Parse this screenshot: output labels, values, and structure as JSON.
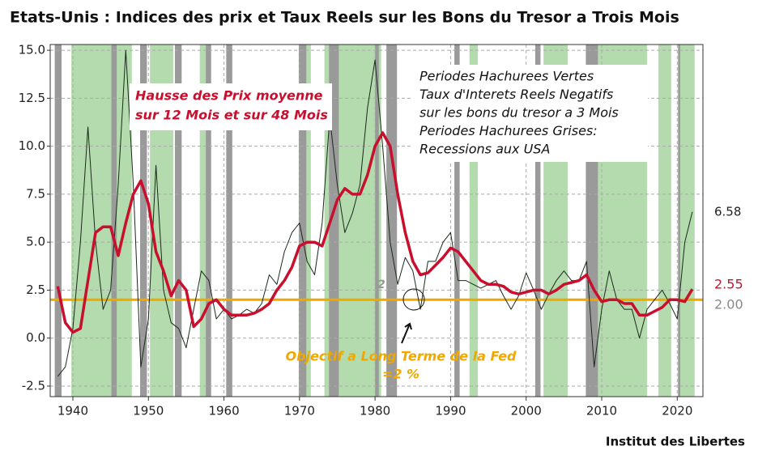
{
  "chart_data": {
    "type": "line",
    "title": "Etats-Unis : Indices des prix et Taux Reels sur les Bons du Tresor a Trois Mois",
    "source": "Institut des Libertes",
    "x": [
      1938,
      1939,
      1940,
      1941,
      1942,
      1943,
      1944,
      1945,
      1946,
      1947,
      1948,
      1949,
      1950,
      1951,
      1952,
      1953,
      1954,
      1955,
      1956,
      1957,
      1958,
      1959,
      1960,
      1961,
      1962,
      1963,
      1964,
      1965,
      1966,
      1967,
      1968,
      1969,
      1970,
      1971,
      1972,
      1973,
      1974,
      1975,
      1976,
      1977,
      1978,
      1979,
      1980,
      1981,
      1982,
      1983,
      1984,
      1985,
      1986,
      1987,
      1988,
      1989,
      1990,
      1991,
      1992,
      1993,
      1994,
      1995,
      1996,
      1997,
      1998,
      1999,
      2000,
      2001,
      2002,
      2003,
      2004,
      2005,
      2006,
      2007,
      2008,
      2009,
      2010,
      2011,
      2012,
      2013,
      2014,
      2015,
      2016,
      2017,
      2018,
      2019,
      2020,
      2021,
      2022
    ],
    "series": [
      {
        "color": "#1a2a1a",
        "width": 1,
        "values": [
          -2.0,
          -1.5,
          0.5,
          5,
          11,
          5,
          1.5,
          2.5,
          8,
          15,
          8,
          -1.5,
          1,
          9,
          2.5,
          0.8,
          0.5,
          -0.5,
          1.5,
          3.5,
          3,
          1,
          1.5,
          1,
          1.2,
          1.5,
          1.3,
          1.8,
          3.3,
          2.8,
          4.5,
          5.5,
          6,
          4,
          3.3,
          6,
          11.5,
          8,
          5.5,
          6.5,
          8,
          12,
          14.5,
          10,
          5,
          2.8,
          4.2,
          3.5,
          1.5,
          4,
          4,
          5,
          5.5,
          3,
          3,
          2.8,
          2.6,
          2.8,
          3,
          2.2,
          1.5,
          2.2,
          3.4,
          2.5,
          1.5,
          2.3,
          3,
          3.5,
          3,
          3,
          4,
          -1.5,
          1.5,
          3.5,
          2,
          1.5,
          1.5,
          0,
          1.5,
          2,
          2.5,
          1.8,
          1,
          5,
          6.58
        ]
      },
      {
        "color": "#c8102e",
        "width": 3.5,
        "values": [
          2.7,
          0.8,
          0.3,
          0.5,
          3,
          5.5,
          5.8,
          5.8,
          4.3,
          6,
          7.5,
          8.2,
          7,
          4.5,
          3.5,
          2.2,
          3.0,
          2.5,
          0.6,
          1,
          1.8,
          2.0,
          1.5,
          1.2,
          1.2,
          1.2,
          1.3,
          1.5,
          1.8,
          2.5,
          3,
          3.7,
          4.8,
          5,
          5,
          4.8,
          6,
          7.2,
          7.8,
          7.5,
          7.5,
          8.5,
          10,
          10.7,
          10,
          7.5,
          5.5,
          4,
          3.3,
          3.4,
          3.8,
          4.2,
          4.7,
          4.5,
          4,
          3.5,
          3,
          2.8,
          2.8,
          2.7,
          2.4,
          2.3,
          2.4,
          2.5,
          2.5,
          2.3,
          2.5,
          2.8,
          2.9,
          3,
          3.3,
          2.5,
          1.9,
          2.0,
          2.0,
          1.8,
          1.8,
          1.2,
          1.2,
          1.4,
          1.6,
          2,
          2,
          1.9,
          2.55
        ]
      }
    ],
    "target": {
      "value": 2,
      "label": "2.00",
      "color": "#f0a800"
    },
    "negative_real_rate_periods": [
      [
        1939.8,
        1947.8
      ],
      [
        1950.2,
        1953.3
      ],
      [
        1956.8,
        1958.0
      ],
      [
        1970.3,
        1971.5
      ],
      [
        1973.3,
        1980.8
      ],
      [
        1992.5,
        1993.6
      ],
      [
        2002.3,
        2005.5
      ],
      [
        2008.2,
        2016.0
      ],
      [
        2017.5,
        2019.2
      ],
      [
        2020.3,
        2022.3
      ]
    ],
    "negative_color": "#b3dbad",
    "recessions": [
      [
        1937.6,
        1938.5
      ],
      [
        1945.1,
        1945.8
      ],
      [
        1948.9,
        1949.8
      ],
      [
        1953.5,
        1954.4
      ],
      [
        1957.6,
        1958.3
      ],
      [
        1960.3,
        1961.1
      ],
      [
        1969.9,
        1970.9
      ],
      [
        1973.9,
        1975.2
      ],
      [
        1980.0,
        1980.5
      ],
      [
        1981.5,
        1982.9
      ],
      [
        1990.5,
        1991.2
      ],
      [
        2001.2,
        2001.9
      ],
      [
        2007.9,
        2009.5
      ],
      [
        2020.1,
        2020.4
      ]
    ],
    "recession_color": "#9a9a9a",
    "xlim": [
      1937,
      2023.4
    ],
    "ylim": [
      -3.05,
      15.3
    ],
    "xticks": [
      1940,
      1950,
      1960,
      1970,
      1980,
      1990,
      2000,
      2010,
      2020
    ],
    "yticks": [
      {
        "value": -2.5,
        "label": "-2.5"
      },
      {
        "value": 0,
        "label": "0.0"
      },
      2.5,
      {
        "value": 5,
        "label": "5.0"
      },
      7.5,
      {
        "value": 10,
        "label": "10.0"
      },
      12.5,
      {
        "value": 15,
        "label": "15.0"
      }
    ],
    "grid": true,
    "annotations": {
      "price_box": [
        "Hausse des Prix moyenne",
        "sur 12 Mois et sur 48 Mois"
      ],
      "legend_box": [
        "Periodes Hachurees Vertes",
        "Taux d'Interets Reels Negatifs",
        "sur les bons du tresor a 3 Mois",
        "Periodes Hachurees Grises:",
        "Recessions aux USA"
      ],
      "fed_note": [
        "Objectif a Long Terme de la Fed",
        "=2 %"
      ],
      "marker": "2"
    }
  }
}
